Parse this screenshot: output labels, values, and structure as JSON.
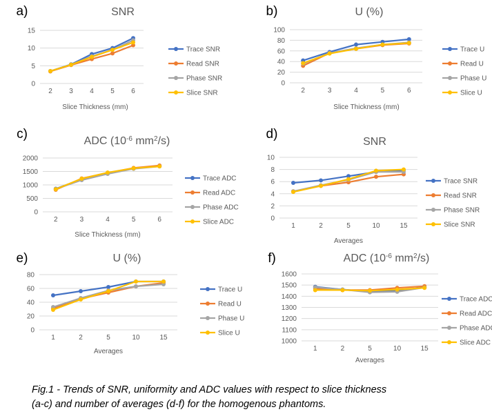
{
  "colors": {
    "trace": "#4472C4",
    "read": "#ED7D31",
    "phase": "#A5A5A5",
    "slice": "#FFC000",
    "gridline": "#D9D9D9",
    "text": "#595959"
  },
  "caption": {
    "line1": "Fig.1 - Trends of SNR, uniformity and ADC values with respect to slice thickness",
    "line2": "(a-c) and number of averages (d-f) for the homogenous phantoms."
  },
  "chart_data": [
    {
      "id": "a",
      "letter": "a)",
      "type": "line",
      "title": "SNR",
      "xlabel": "Slice Thickness (mm)",
      "ylabel": "",
      "categories": [
        "2",
        "3",
        "4",
        "5",
        "6"
      ],
      "ylim": [
        0,
        15
      ],
      "yticks": [
        0,
        5,
        10,
        15
      ],
      "grid": true,
      "legend_position": "right",
      "series": [
        {
          "name": "Trace SNR",
          "key": "trace",
          "values": [
            3.5,
            5.4,
            8.3,
            10.0,
            12.8
          ]
        },
        {
          "name": "Read SNR",
          "key": "read",
          "values": [
            3.4,
            5.2,
            6.9,
            8.5,
            10.8
          ]
        },
        {
          "name": "Phase SNR",
          "key": "phase",
          "values": [
            3.5,
            5.3,
            7.7,
            9.5,
            12.2
          ]
        },
        {
          "name": "Slice SNR",
          "key": "slice",
          "values": [
            3.5,
            5.3,
            7.5,
            9.5,
            11.6
          ]
        }
      ]
    },
    {
      "id": "b",
      "letter": "b)",
      "type": "line",
      "title": "U (%)",
      "xlabel": "Slice Thickness (mm)",
      "ylabel": "",
      "categories": [
        "2",
        "3",
        "4",
        "5",
        "6"
      ],
      "ylim": [
        0,
        100
      ],
      "yticks": [
        0,
        20,
        40,
        60,
        80,
        100
      ],
      "grid": true,
      "legend_position": "right",
      "series": [
        {
          "name": "Trace U",
          "key": "trace",
          "values": [
            42,
            58,
            72,
            77,
            82
          ]
        },
        {
          "name": "Read U",
          "key": "read",
          "values": [
            32,
            56,
            64,
            71,
            74
          ]
        },
        {
          "name": "Phase U",
          "key": "phase",
          "values": [
            36,
            56,
            65,
            72,
            76
          ]
        },
        {
          "name": "Slice U",
          "key": "slice",
          "values": [
            37,
            55,
            64,
            72,
            75
          ]
        }
      ]
    },
    {
      "id": "c",
      "letter": "c)",
      "type": "line",
      "title": "ADC (10",
      "title_sup": "-6",
      "title_mid": " mm",
      "title_sup2": "2",
      "title_end": "/s)",
      "xlabel": "Slice Thickness (mm)",
      "ylabel": "",
      "categories": [
        "2",
        "3",
        "4",
        "5",
        "6"
      ],
      "ylim": [
        0,
        2000
      ],
      "yticks": [
        0,
        500,
        1000,
        1500,
        2000
      ],
      "grid": true,
      "legend_position": "right",
      "series": [
        {
          "name": "Trace ADC",
          "key": "trace",
          "values": [
            860,
            1210,
            1420,
            1610,
            1700
          ]
        },
        {
          "name": "Read ADC",
          "key": "read",
          "values": [
            820,
            1240,
            1450,
            1630,
            1720
          ]
        },
        {
          "name": "Phase ADC",
          "key": "phase",
          "values": [
            850,
            1180,
            1410,
            1600,
            1690
          ]
        },
        {
          "name": "Slice ADC",
          "key": "slice",
          "values": [
            840,
            1230,
            1460,
            1620,
            1690
          ]
        }
      ]
    },
    {
      "id": "d",
      "letter": "d)",
      "type": "line",
      "title": "SNR",
      "xlabel": "Averages",
      "ylabel": "",
      "categories": [
        "1",
        "2",
        "5",
        "10",
        "15"
      ],
      "ylim": [
        0,
        10
      ],
      "yticks": [
        0,
        2,
        4,
        6,
        8,
        10
      ],
      "grid": true,
      "legend_position": "right",
      "series": [
        {
          "name": "Trace SNR",
          "key": "trace",
          "values": [
            5.8,
            6.2,
            6.9,
            7.6,
            7.9
          ]
        },
        {
          "name": "Read SNR",
          "key": "read",
          "values": [
            4.4,
            5.3,
            5.9,
            6.8,
            7.2
          ]
        },
        {
          "name": "Phase SNR",
          "key": "phase",
          "values": [
            4.4,
            5.4,
            6.3,
            7.6,
            7.6
          ]
        },
        {
          "name": "Slice SNR",
          "key": "slice",
          "values": [
            4.3,
            5.3,
            6.4,
            7.8,
            8.0
          ]
        }
      ]
    },
    {
      "id": "e",
      "letter": "e)",
      "type": "line",
      "title": "U (%)",
      "xlabel": "Averages",
      "ylabel": "",
      "categories": [
        "1",
        "2",
        "5",
        "10",
        "15"
      ],
      "ylim": [
        0,
        80
      ],
      "yticks": [
        0,
        20,
        40,
        60,
        80
      ],
      "grid": true,
      "legend_position": "right",
      "series": [
        {
          "name": "Trace U",
          "key": "trace",
          "values": [
            50,
            56,
            62,
            70,
            70
          ]
        },
        {
          "name": "Read U",
          "key": "read",
          "values": [
            31,
            45,
            54,
            63,
            68
          ]
        },
        {
          "name": "Phase U",
          "key": "phase",
          "values": [
            33,
            46,
            57,
            63,
            66
          ]
        },
        {
          "name": "Slice U",
          "key": "slice",
          "values": [
            29,
            44,
            56,
            70,
            70
          ]
        }
      ]
    },
    {
      "id": "f",
      "letter": "f)",
      "type": "line",
      "title": "ADC (10",
      "title_sup": "-6",
      "title_mid": " mm",
      "title_sup2": "2",
      "title_end": "/s)",
      "xlabel": "Averages",
      "ylabel": "",
      "categories": [
        "1",
        "2",
        "5",
        "10",
        "15"
      ],
      "ylim": [
        1000,
        1600
      ],
      "yticks": [
        1000,
        1100,
        1200,
        1300,
        1400,
        1500,
        1600
      ],
      "grid": true,
      "legend_position": "right",
      "series": [
        {
          "name": "Trace ADC",
          "key": "trace",
          "values": [
            1485,
            1460,
            1440,
            1450,
            1480
          ]
        },
        {
          "name": "Read ADC",
          "key": "read",
          "values": [
            1470,
            1455,
            1455,
            1475,
            1490
          ]
        },
        {
          "name": "Phase ADC",
          "key": "phase",
          "values": [
            1480,
            1460,
            1435,
            1440,
            1478
          ]
        },
        {
          "name": "Slice ADC",
          "key": "slice",
          "values": [
            1455,
            1455,
            1450,
            1460,
            1475
          ]
        }
      ]
    }
  ]
}
